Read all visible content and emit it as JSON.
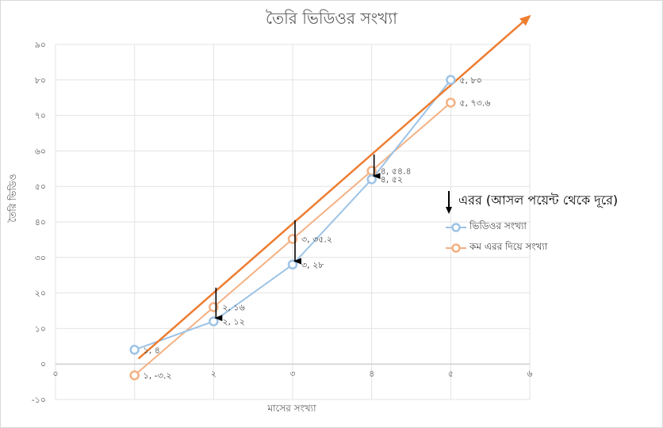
{
  "chart_data": {
    "type": "line",
    "title": "তৈরি ভিডিওর সংখ্যা",
    "xlabel": "মাসের সংখ্যা",
    "ylabel": "তৈরি ভিডিও",
    "xlim": [
      0,
      6
    ],
    "ylim": [
      -10,
      90
    ],
    "x_ticks": [
      0,
      1,
      2,
      3,
      4,
      5,
      6
    ],
    "x_tick_labels": [
      "০",
      "১",
      "২",
      "৩",
      "৪",
      "৫",
      "৬"
    ],
    "y_ticks": [
      -10,
      0,
      10,
      20,
      30,
      40,
      50,
      60,
      70,
      80,
      90
    ],
    "y_tick_labels": [
      "-১০",
      "০",
      "১০",
      "২০",
      "৩০",
      "৪০",
      "৫০",
      "৬০",
      "৭০",
      "৮০",
      "৯০"
    ],
    "grid": true,
    "legend_position": "right",
    "series": [
      {
        "name": "ভিডিওর সংখ্যা",
        "color": "#9dc3e6",
        "x": [
          1,
          2,
          3,
          4,
          5
        ],
        "y": [
          4,
          12,
          28,
          52,
          80
        ],
        "labels": [
          "১, ৪",
          "২, ১২",
          "৩, ২৮",
          "৪, ৫২",
          "৫, ৮০"
        ]
      },
      {
        "name": "কম এরর দিয়ে সংখ্যা",
        "color": "#f4b183",
        "x": [
          1,
          2,
          3,
          4,
          5
        ],
        "y": [
          -3.2,
          16,
          35.2,
          54.4,
          73.6
        ],
        "labels": [
          "১, -৩.২",
          "২, ১৬",
          "৩, ৩৫.২",
          "৪, ৫৪.৪",
          "৫, ৭৩.৬"
        ]
      }
    ],
    "trend_line": {
      "color": "#ed7d31",
      "from": [
        1.05,
        1.5
      ],
      "to": [
        6,
        98
      ]
    },
    "error_arrows": [
      {
        "x": 2,
        "y_from": 21.5,
        "y_to": 12.5
      },
      {
        "x": 3,
        "y_from": 40.5,
        "y_to": 28.5
      },
      {
        "x": 4,
        "y_from": 59,
        "y_to": 52.5
      }
    ],
    "annotation": "এরর (আসল পয়েন্ট থেকে দূরে)"
  }
}
